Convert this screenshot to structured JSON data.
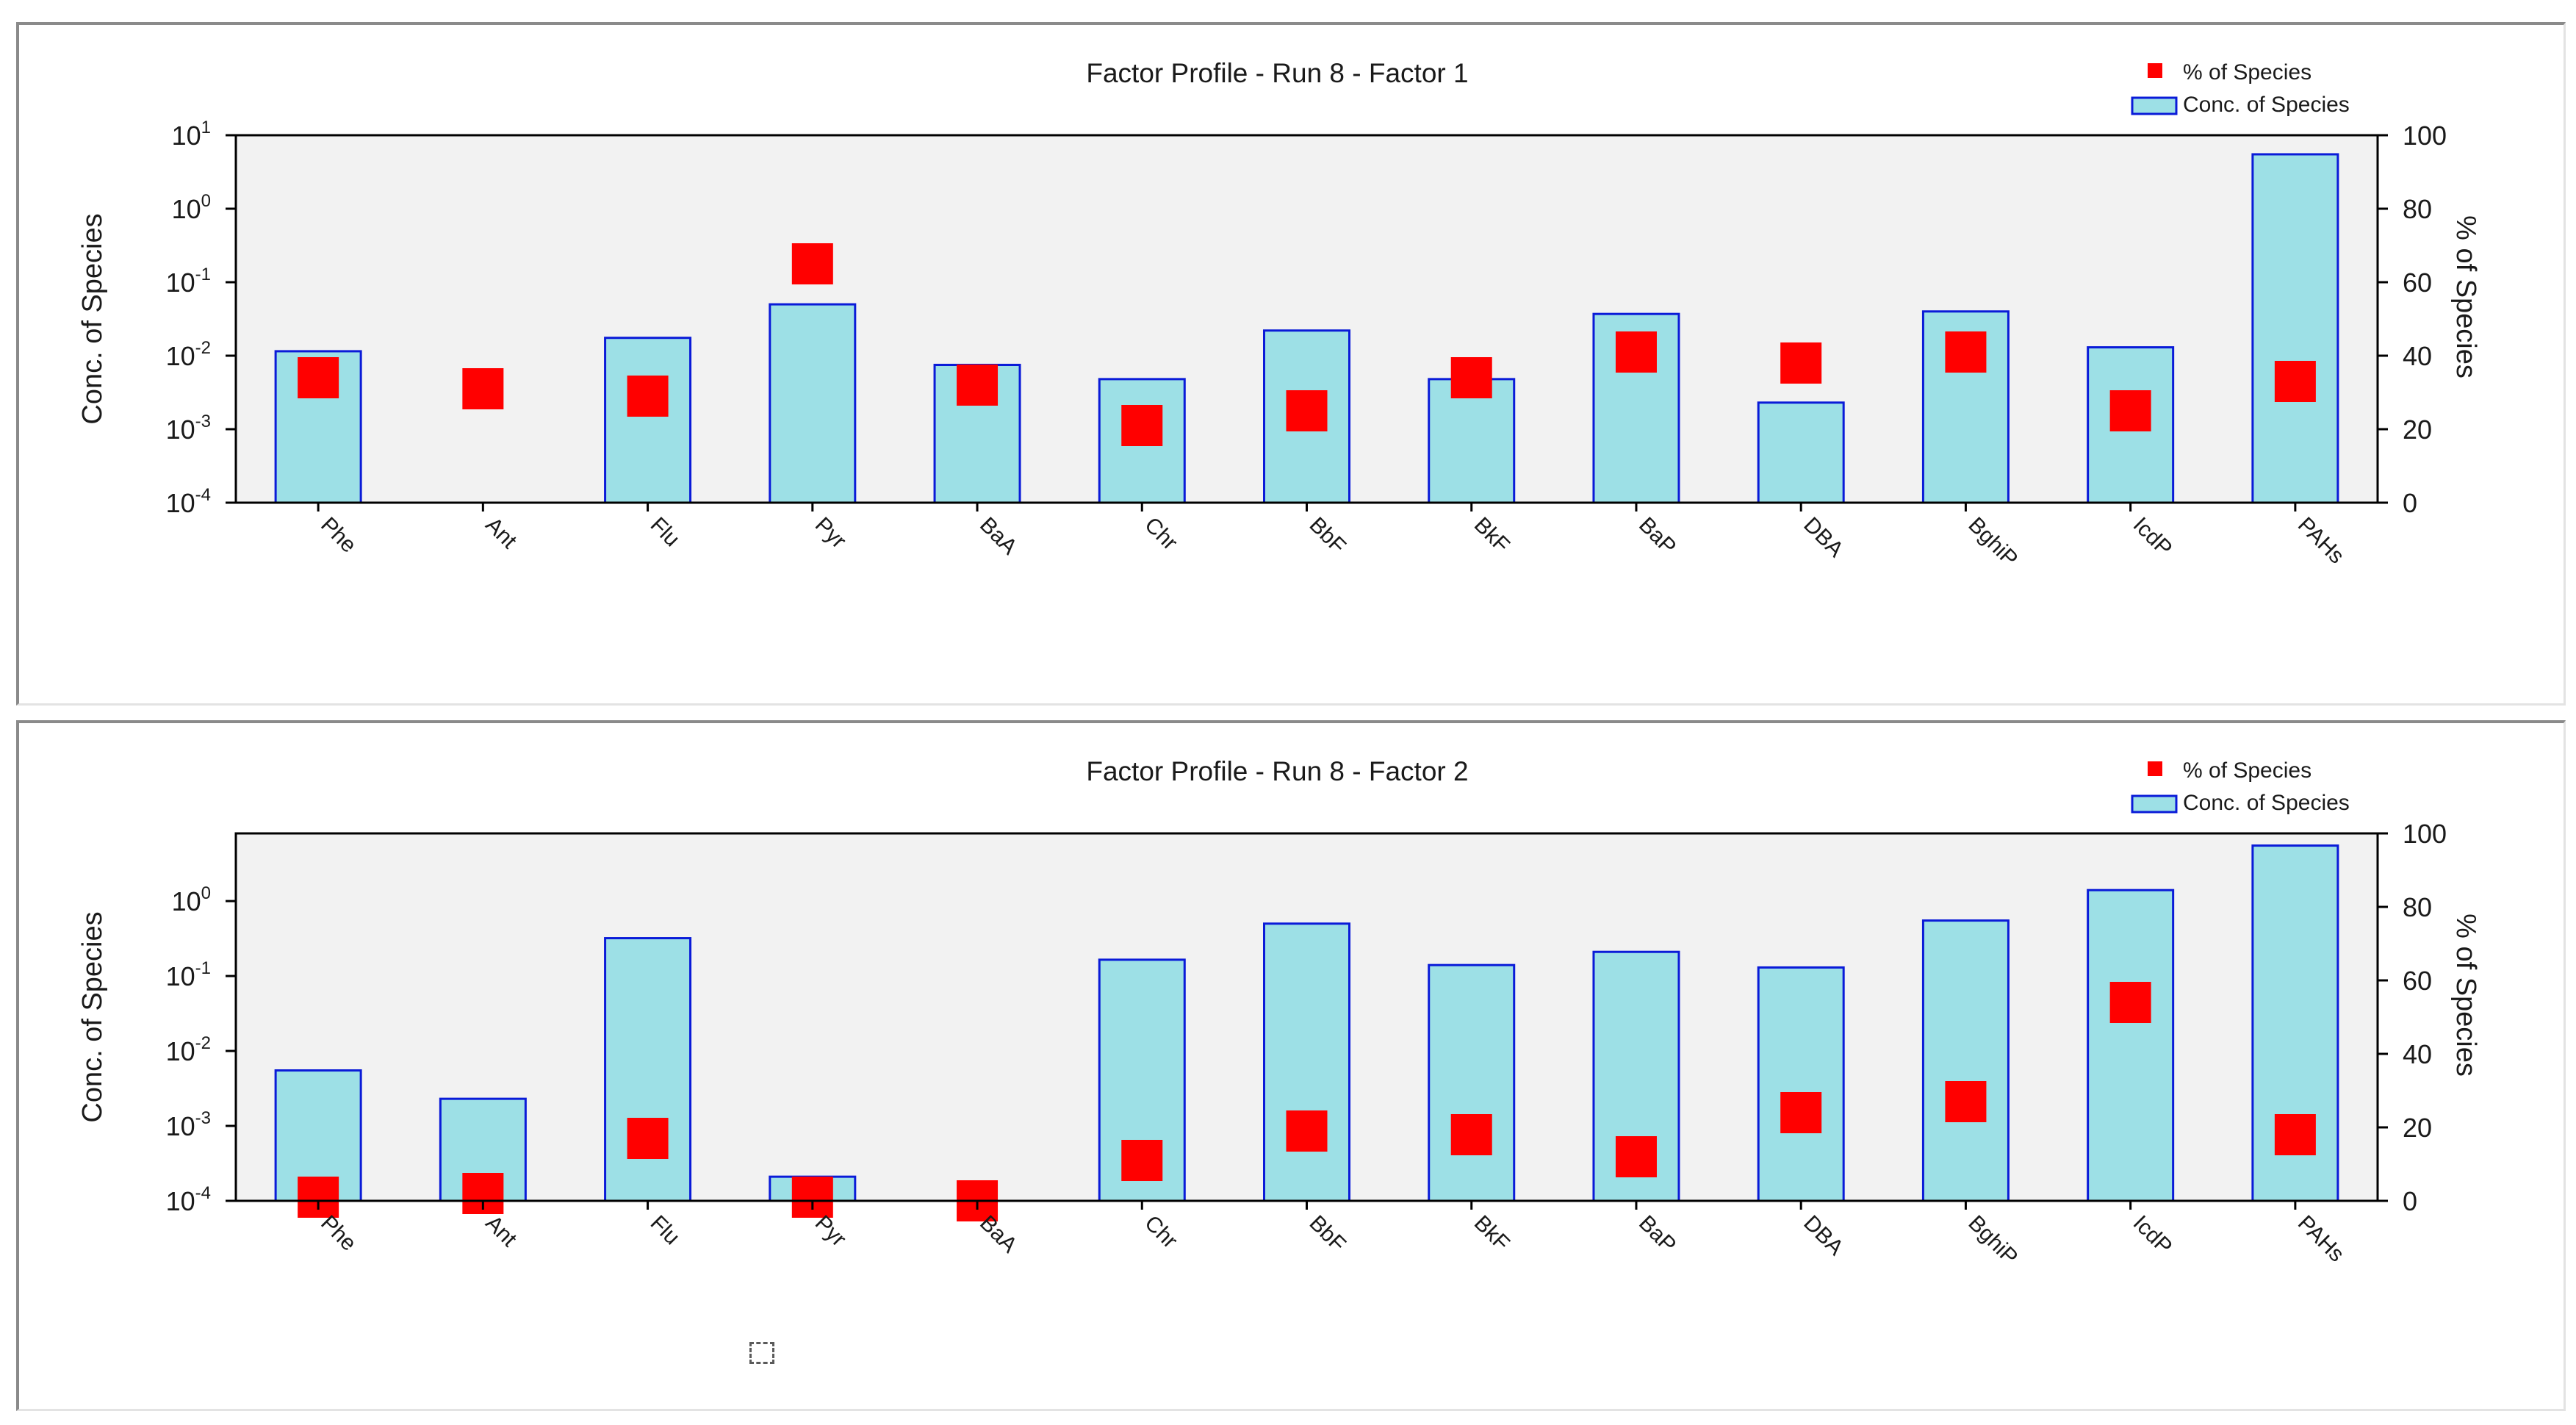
{
  "colors": {
    "bar_fill": "#9de0e6",
    "bar_stroke": "#0a1bd8",
    "marker": "#ff0000",
    "plot_bg": "#f2f2f2"
  },
  "chart_data": [
    {
      "type": "bar",
      "title": "Factor Profile - Run 8 - Factor 1",
      "categories": [
        "Phe",
        "Ant",
        "Flu",
        "Pyr",
        "BaA",
        "Chr",
        "BbF",
        "BkF",
        "BaP",
        "DBA",
        "BghiP",
        "IcdP",
        "PAHs"
      ],
      "ylabel": "Conc. of Species",
      "y2label": "% of Species",
      "yscale": "log",
      "ylim": [
        0.0001,
        10
      ],
      "yticks": [
        {
          "base": "10",
          "exp": "1",
          "value": 10
        },
        {
          "base": "10",
          "exp": "0",
          "value": 1
        },
        {
          "base": "10",
          "exp": "-1",
          "value": 0.1
        },
        {
          "base": "10",
          "exp": "-2",
          "value": 0.01
        },
        {
          "base": "10",
          "exp": "-3",
          "value": 0.001
        },
        {
          "base": "10",
          "exp": "-4",
          "value": 0.0001
        }
      ],
      "y2lim": [
        0,
        100
      ],
      "y2ticks": [
        "0",
        "20",
        "40",
        "60",
        "80",
        "100"
      ],
      "legend_position": "top-right",
      "series": [
        {
          "name": "Conc. of Species",
          "kind": "bar",
          "axis": "left",
          "values": [
            0.0115,
            null,
            0.0175,
            0.05,
            0.0075,
            0.0048,
            0.022,
            0.0048,
            0.037,
            0.0023,
            0.04,
            0.013,
            5.5
          ]
        },
        {
          "name": "% of Species",
          "kind": "marker",
          "axis": "right",
          "values": [
            34,
            31,
            29,
            65,
            32,
            21,
            25,
            34,
            41,
            38,
            41,
            25,
            33
          ]
        }
      ]
    },
    {
      "type": "bar",
      "title": "Factor Profile - Run 8 - Factor 2",
      "categories": [
        "Phe",
        "Ant",
        "Flu",
        "Pyr",
        "BaA",
        "Chr",
        "BbF",
        "BkF",
        "BaP",
        "DBA",
        "BghiP",
        "IcdP",
        "PAHs"
      ],
      "ylabel": "Conc. of Species",
      "y2label": "% of Species",
      "yscale": "log",
      "ylim": [
        0.0001,
        8
      ],
      "yticks": [
        {
          "base": "10",
          "exp": "0",
          "value": 1
        },
        {
          "base": "10",
          "exp": "-1",
          "value": 0.1
        },
        {
          "base": "10",
          "exp": "-2",
          "value": 0.01
        },
        {
          "base": "10",
          "exp": "-3",
          "value": 0.001
        },
        {
          "base": "10",
          "exp": "-4",
          "value": 0.0001
        }
      ],
      "y2lim": [
        0,
        100
      ],
      "y2ticks": [
        "0",
        "20",
        "40",
        "60",
        "80",
        "100"
      ],
      "legend_position": "top-right",
      "series": [
        {
          "name": "Conc. of Species",
          "kind": "bar",
          "axis": "left",
          "values": [
            0.0055,
            0.0023,
            0.32,
            0.00021,
            null,
            0.165,
            0.5,
            0.14,
            0.21,
            0.13,
            0.55,
            1.4,
            5.5
          ]
        },
        {
          "name": "% of Species",
          "kind": "marker",
          "axis": "right",
          "values": [
            1,
            2,
            17,
            1,
            0,
            11,
            19,
            18,
            12,
            24,
            27,
            54,
            18
          ]
        }
      ]
    }
  ]
}
